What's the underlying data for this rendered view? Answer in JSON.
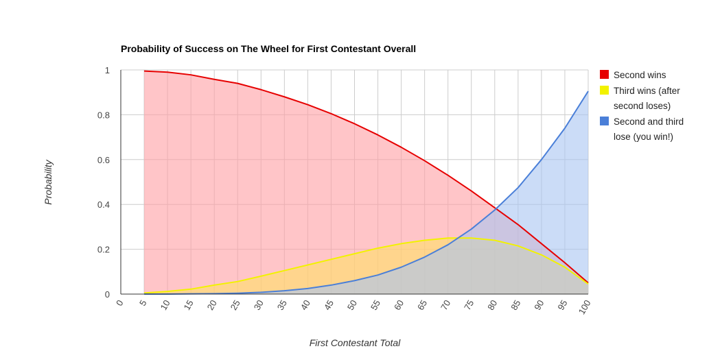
{
  "chart_data": {
    "type": "area",
    "title": "Probability of Success on The Wheel for First Contestant Overall",
    "xlabel": "First Contestant Total",
    "ylabel": "Probability",
    "xlim": [
      0,
      100
    ],
    "ylim": [
      0,
      1
    ],
    "grid": true,
    "legend": "right",
    "x_ticks": [
      "0",
      "5",
      "10",
      "15",
      "20",
      "25",
      "30",
      "35",
      "40",
      "45",
      "50",
      "55",
      "60",
      "65",
      "70",
      "75",
      "80",
      "85",
      "90",
      "95",
      "100"
    ],
    "y_ticks": [
      "0",
      "0.2",
      "0.4",
      "0.6",
      "0.8",
      "1"
    ],
    "x": [
      5,
      10,
      15,
      20,
      25,
      30,
      35,
      40,
      45,
      50,
      55,
      60,
      65,
      70,
      75,
      80,
      85,
      90,
      95,
      100
    ],
    "series": [
      {
        "name": "Second wins",
        "line_color": "#e60000",
        "fill_color": "#ff9ea3",
        "values": [
          0.995,
          0.99,
          0.978,
          0.958,
          0.94,
          0.912,
          0.88,
          0.845,
          0.805,
          0.76,
          0.71,
          0.655,
          0.595,
          0.53,
          0.46,
          0.385,
          0.31,
          0.225,
          0.14,
          0.05
        ]
      },
      {
        "name": "Third wins (after second loses)",
        "name_lines": [
          "Third wins (after",
          "second loses)"
        ],
        "line_color": "#f2f200",
        "fill_color": "#ffdf66",
        "values": [
          0.005,
          0.012,
          0.022,
          0.04,
          0.056,
          0.08,
          0.105,
          0.13,
          0.155,
          0.18,
          0.205,
          0.225,
          0.24,
          0.25,
          0.25,
          0.24,
          0.215,
          0.175,
          0.12,
          0.045
        ]
      },
      {
        "name": "Second and third lose (you win!)",
        "name_lines": [
          "Second and third",
          "lose (you win!)"
        ],
        "line_color": "#4a7fd8",
        "fill_color": "#a9c4f1",
        "values": [
          0.0,
          0.0,
          0.001,
          0.002,
          0.004,
          0.008,
          0.015,
          0.025,
          0.04,
          0.06,
          0.085,
          0.12,
          0.165,
          0.22,
          0.29,
          0.375,
          0.475,
          0.6,
          0.74,
          0.905
        ]
      }
    ]
  }
}
